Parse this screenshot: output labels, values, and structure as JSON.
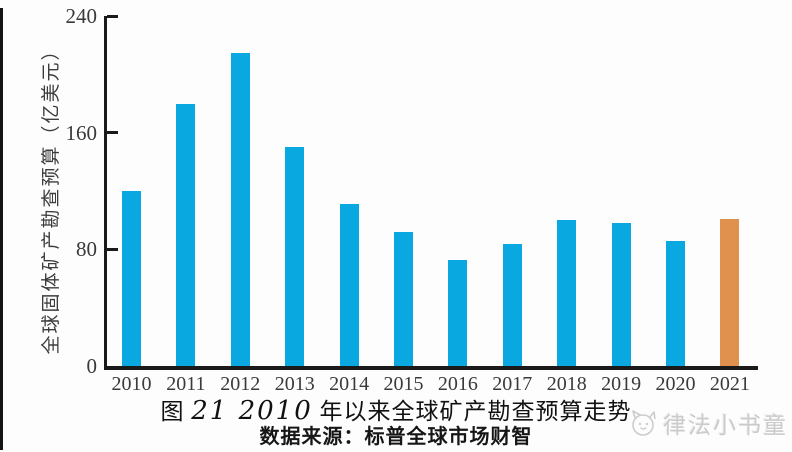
{
  "chart_data": {
    "type": "bar",
    "title": "图 21 2010 年以来全球矿产勘查预算走势",
    "source": "数据来源：标普全球市场财智",
    "ylabel": "全球固体矿产勘查预算（亿美元）",
    "xlabel": "",
    "categories": [
      "2010",
      "2011",
      "2012",
      "2013",
      "2014",
      "2015",
      "2016",
      "2017",
      "2018",
      "2019",
      "2020",
      "2021"
    ],
    "values": [
      120,
      180,
      215,
      150,
      111,
      92,
      73,
      84,
      100,
      98,
      86,
      101
    ],
    "ylim": [
      0,
      240
    ],
    "yticks": [
      0,
      80,
      160,
      240
    ],
    "grid": false,
    "legend": "none",
    "bar_color": "#0aa8e1",
    "highlight_color": "#e0914d",
    "highlight_category": "2021"
  },
  "caption": {
    "prefix": "图 ",
    "numbers": "21 2010",
    "suffix": " 年以来全球矿产勘查预算走势"
  },
  "source_line": "数据来源：标普全球市场财智",
  "watermark": {
    "label": "律法小书童"
  }
}
